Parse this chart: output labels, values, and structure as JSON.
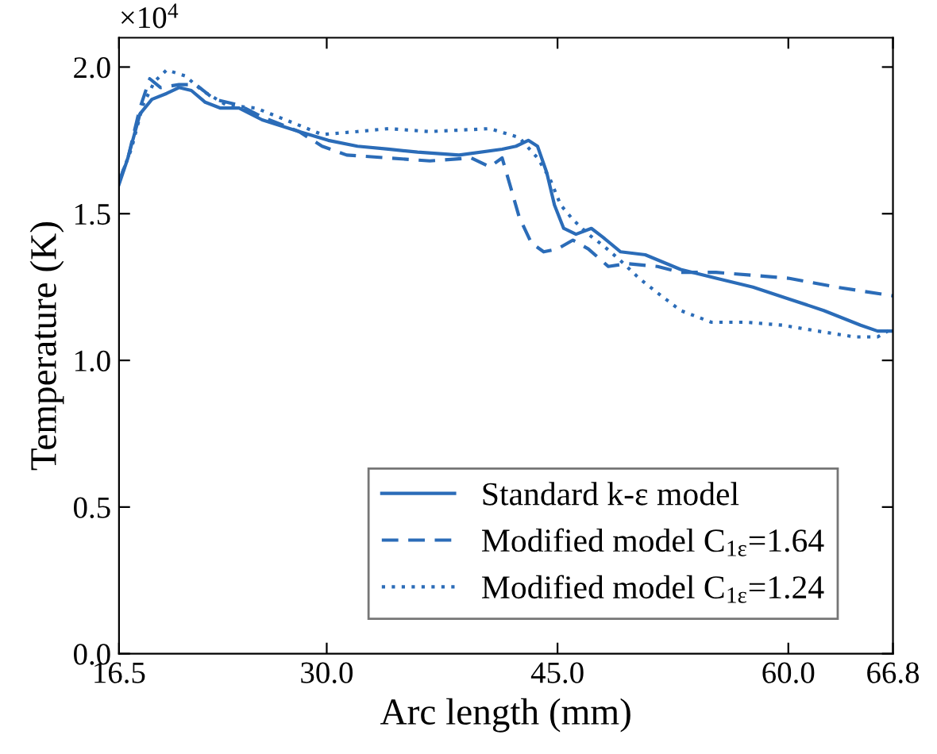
{
  "chart_data": {
    "type": "line",
    "xlabel": "Arc length (mm)",
    "ylabel": "Temperature (K)",
    "annotations": [
      "×10$^{4}$"
    ],
    "xlim": [
      16.5,
      66.8
    ],
    "xticks": [
      16.5,
      {
        "value": 30,
        "label": "30.0"
      },
      {
        "value": 45,
        "label": "45.0"
      },
      {
        "value": 60,
        "label": "60.0"
      },
      66.8
    ],
    "ylim": [
      0.0,
      2.1
    ],
    "yticks": [
      {
        "value": 0,
        "label": "0.0"
      },
      0.5,
      {
        "value": 1,
        "label": "1.0"
      },
      1.5,
      {
        "value": 2,
        "label": "2.0"
      }
    ],
    "grid": false,
    "legend": "bottom right",
    "series": [
      {
        "name": "Standard k-ε model",
        "color": "#2b6cb8",
        "line_style": "solid",
        "x": [
          16.5,
          17.08,
          17.86,
          18.64,
          19.6,
          20.4,
          21.2,
          22.1,
          23.1,
          24.3,
          25.8,
          28.2,
          30.1,
          32.0,
          34.0,
          35.9,
          38.6,
          41.4,
          42.3,
          43.1,
          43.7,
          44.3,
          44.8,
          45.4,
          46.2,
          47.2,
          47.95,
          49.1,
          50.7,
          53.0,
          55.3,
          57.7,
          60.0,
          62.3,
          64.7,
          65.8,
          66.8
        ],
        "values": [
          1.6,
          1.69,
          1.84,
          1.89,
          1.91,
          1.93,
          1.92,
          1.88,
          1.86,
          1.86,
          1.82,
          1.78,
          1.75,
          1.73,
          1.72,
          1.71,
          1.7,
          1.72,
          1.73,
          1.75,
          1.73,
          1.64,
          1.53,
          1.45,
          1.43,
          1.45,
          1.42,
          1.37,
          1.36,
          1.31,
          1.28,
          1.25,
          1.21,
          1.17,
          1.12,
          1.1,
          1.1
        ]
      },
      {
        "name": "Modified model C$_{1ε}$=1.64",
        "color": "#2b6cb8",
        "line_style": "dashed",
        "x": [
          16.5,
          17.08,
          17.86,
          18.5,
          19.2,
          20.4,
          21.5,
          22.7,
          24.3,
          25.8,
          28.2,
          29.7,
          31.3,
          34.0,
          36.7,
          39.4,
          40.6,
          41.4,
          41.9,
          42.5,
          43.3,
          44.1,
          45.0,
          46.0,
          47.0,
          48.3,
          49.5,
          51.5,
          53.0,
          55.3,
          57.7,
          60.0,
          63.1,
          66.8
        ],
        "values": [
          1.61,
          1.69,
          1.86,
          1.96,
          1.93,
          1.94,
          1.94,
          1.89,
          1.87,
          1.83,
          1.78,
          1.73,
          1.7,
          1.69,
          1.68,
          1.69,
          1.66,
          1.69,
          1.6,
          1.49,
          1.4,
          1.37,
          1.38,
          1.41,
          1.38,
          1.32,
          1.33,
          1.32,
          1.3,
          1.3,
          1.29,
          1.28,
          1.25,
          1.22
        ]
      },
      {
        "name": "Modified model C$_{1ε}$=1.24",
        "color": "#2b6cb8",
        "line_style": "dotted",
        "x": [
          16.5,
          17.3,
          18.05,
          18.8,
          19.6,
          20.8,
          21.9,
          23.5,
          25.4,
          27.8,
          29.7,
          32.0,
          34.0,
          36.7,
          40.6,
          42.5,
          43.7,
          44.5,
          45.2,
          46.0,
          47.0,
          48.0,
          49.1,
          50.3,
          51.5,
          53.0,
          55.0,
          57.3,
          59.6,
          61.9,
          64.3,
          65.8,
          66.8
        ],
        "values": [
          1.61,
          1.72,
          1.87,
          1.95,
          1.99,
          1.97,
          1.92,
          1.87,
          1.86,
          1.81,
          1.77,
          1.78,
          1.79,
          1.78,
          1.79,
          1.76,
          1.69,
          1.62,
          1.53,
          1.48,
          1.43,
          1.39,
          1.34,
          1.28,
          1.23,
          1.17,
          1.13,
          1.13,
          1.12,
          1.1,
          1.08,
          1.08,
          1.11
        ]
      }
    ]
  }
}
